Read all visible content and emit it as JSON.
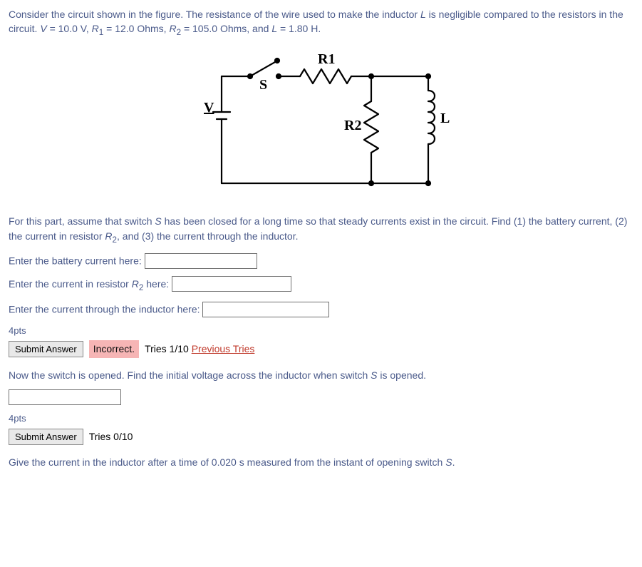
{
  "problem": {
    "intro_html": "Consider the circuit shown in the figure. The resistance of the wire used to make the inductor <i>L</i> is negligible compared to the resistors in the circuit. <i>V</i> = 10.0 V, <i>R</i><sub>1</sub> = 12.0 Ohms, <i>R</i><sub>2</sub> = 105.0 Ohms, and <i>L</i> = 1.80 H.",
    "part1_html": "For this part, assume that switch <i>S</i> has been closed for a long time so that steady currents exist in the circuit. Find (1) the battery current, (2) the current in resistor <i>R</i><sub>2</sub>, and (3) the current through the inductor.",
    "part2_html": "Now the switch is opened. Find the initial voltage across the inductor when switch <i>S</i> is opened.",
    "part3_html": "Give the current in the inductor after a time of 0.020 s measured from the instant of opening switch <i>S</i>."
  },
  "inputs": {
    "q1_label": "Enter the battery current here:",
    "q2_label_html": "Enter the current in resistor <i>R</i><sub>2</sub> here:",
    "q3_label": "Enter the current through the inductor here:"
  },
  "answer1": {
    "pts": "4pts",
    "submit": "Submit Answer",
    "status": "Incorrect.",
    "tries": "Tries 1/10",
    "prev": "Previous Tries"
  },
  "answer2": {
    "pts": "4pts",
    "submit": "Submit Answer",
    "tries": "Tries 0/10"
  },
  "figure": {
    "labels": {
      "R1": "R1",
      "R2": "R2",
      "L": "L",
      "V": "V",
      "S": "S"
    },
    "stroke": "#000000",
    "stroke_width": 2.2
  }
}
